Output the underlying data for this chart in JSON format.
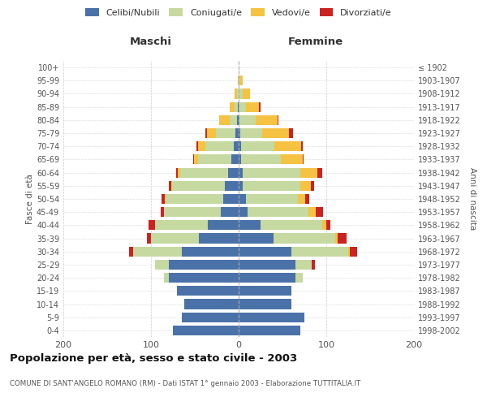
{
  "age_groups": [
    "0-4",
    "5-9",
    "10-14",
    "15-19",
    "20-24",
    "25-29",
    "30-34",
    "35-39",
    "40-44",
    "45-49",
    "50-54",
    "55-59",
    "60-64",
    "65-69",
    "70-74",
    "75-79",
    "80-84",
    "85-89",
    "90-94",
    "95-99",
    "100+"
  ],
  "birth_years": [
    "1998-2002",
    "1993-1997",
    "1988-1992",
    "1983-1987",
    "1978-1982",
    "1973-1977",
    "1968-1972",
    "1963-1967",
    "1958-1962",
    "1953-1957",
    "1948-1952",
    "1943-1947",
    "1938-1942",
    "1933-1937",
    "1928-1932",
    "1923-1927",
    "1918-1922",
    "1913-1917",
    "1908-1912",
    "1903-1907",
    "≤ 1902"
  ],
  "maschi": {
    "celibi": [
      75,
      65,
      62,
      70,
      80,
      80,
      65,
      45,
      35,
      20,
      18,
      16,
      12,
      8,
      6,
      4,
      2,
      1,
      0,
      0,
      0
    ],
    "coniugati": [
      0,
      0,
      0,
      0,
      5,
      15,
      55,
      55,
      60,
      65,
      65,
      60,
      55,
      38,
      32,
      22,
      8,
      4,
      2,
      0,
      0
    ],
    "vedovi": [
      0,
      0,
      0,
      0,
      0,
      0,
      0,
      0,
      0,
      0,
      1,
      1,
      2,
      5,
      8,
      10,
      12,
      5,
      3,
      1,
      0
    ],
    "divorziati": [
      0,
      0,
      0,
      0,
      0,
      0,
      5,
      5,
      8,
      4,
      4,
      3,
      2,
      1,
      2,
      2,
      0,
      0,
      0,
      0,
      0
    ]
  },
  "femmine": {
    "nubili": [
      70,
      75,
      60,
      60,
      65,
      65,
      60,
      40,
      25,
      10,
      8,
      5,
      5,
      3,
      3,
      2,
      1,
      0,
      0,
      0,
      0
    ],
    "coniugate": [
      0,
      0,
      0,
      0,
      8,
      18,
      65,
      70,
      70,
      70,
      60,
      65,
      65,
      45,
      38,
      25,
      18,
      8,
      5,
      2,
      0
    ],
    "vedove": [
      0,
      0,
      0,
      0,
      0,
      0,
      2,
      3,
      5,
      8,
      8,
      12,
      20,
      25,
      30,
      30,
      25,
      15,
      8,
      3,
      0
    ],
    "divorziate": [
      0,
      0,
      0,
      0,
      0,
      4,
      8,
      10,
      5,
      8,
      5,
      4,
      5,
      1,
      2,
      5,
      1,
      2,
      0,
      0,
      0
    ]
  },
  "colors": {
    "celibi": "#4a72a8",
    "coniugati": "#c5d9a0",
    "vedovi": "#f5c242",
    "divorziati": "#cc2222"
  },
  "xlim": 200,
  "title": "Popolazione per età, sesso e stato civile - 2003",
  "subtitle": "COMUNE DI SANT'ANGELO ROMANO (RM) - Dati ISTAT 1° gennaio 2003 - Elaborazione TUTTITALIA.IT",
  "xlabel_maschi": "Maschi",
  "xlabel_femmine": "Femmine",
  "ylabel_left": "Fasce di età",
  "ylabel_right": "Anni di nascita",
  "legend_labels": [
    "Celibi/Nubili",
    "Coniugati/e",
    "Vedovi/e",
    "Divorziati/e"
  ]
}
